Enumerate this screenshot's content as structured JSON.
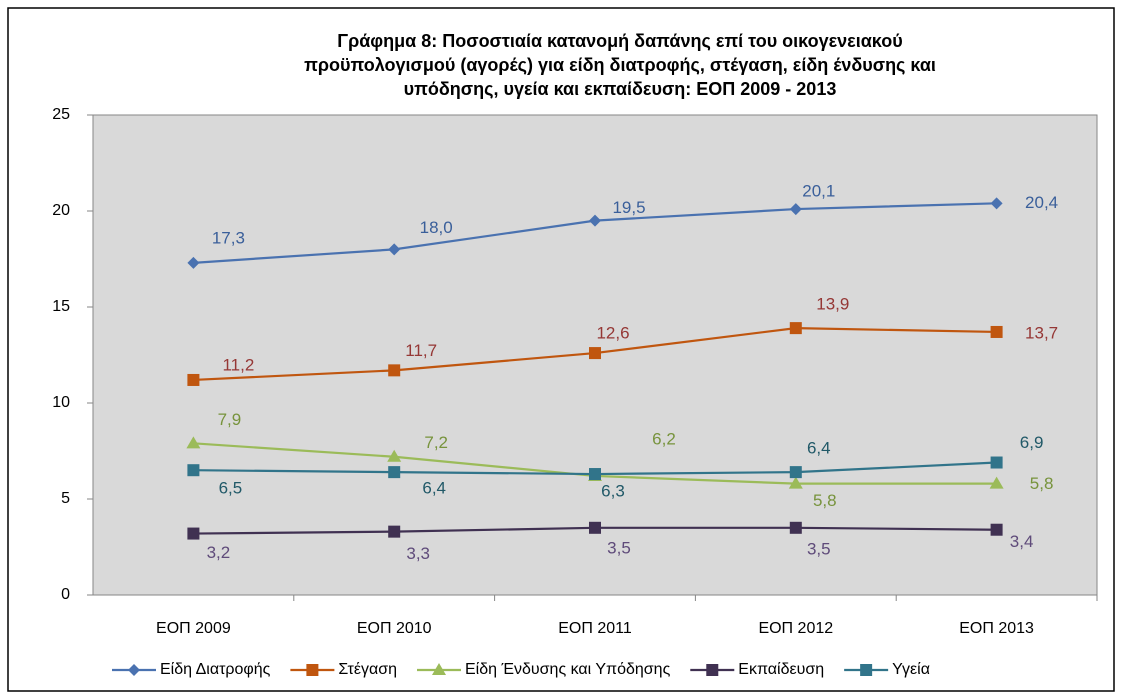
{
  "chart_data": {
    "type": "line",
    "title": [
      "Γράφημα 8: Ποσοστιαία κατανομή δαπάνης επί του οικογενειακού",
      "προϋπολογισμού (αγορές) για είδη διατροφής, στέγαση, είδη ένδυσης και",
      "υπόδησης, υγεία και εκπαίδευση:  ΕΟΠ 2009 - 2013"
    ],
    "categories": [
      "ΕΟΠ 2009",
      "ΕΟΠ 2010",
      "ΕΟΠ 2011",
      "ΕΟΠ 2012",
      "ΕΟΠ 2013"
    ],
    "ylim": [
      0,
      25
    ],
    "yticks": [
      0,
      5,
      10,
      15,
      20,
      25
    ],
    "grid": false,
    "legend": "bottom",
    "series": [
      {
        "name": "Είδη Διατροφής",
        "color": "#4a72b0",
        "label_color": "#3a5f9a",
        "marker": "diamond",
        "values": [
          17.3,
          18.0,
          19.5,
          20.1,
          20.4
        ],
        "value_labels": [
          "17,3",
          "18,0",
          "19,5",
          "20,1",
          "20,4"
        ]
      },
      {
        "name": "Στέγαση",
        "color": "#c0560f",
        "label_color": "#953735",
        "marker": "square",
        "values": [
          11.2,
          11.7,
          12.6,
          13.9,
          13.7
        ],
        "value_labels": [
          "11,2",
          "11,7",
          "12,6",
          "13,9",
          "13,7"
        ]
      },
      {
        "name": "Είδη Ένδυσης και Υπόδησης",
        "color": "#9bbb59",
        "label_color": "#77933c",
        "marker": "triangle",
        "values": [
          7.9,
          7.2,
          6.2,
          5.8,
          5.8
        ],
        "value_labels": [
          "7,9",
          "7,2",
          "6,2",
          "5,8",
          "5,8"
        ]
      },
      {
        "name": "Εκπαίδευση",
        "color": "#403152",
        "label_color": "#5f4b7a",
        "marker": "square",
        "values": [
          3.2,
          3.3,
          3.5,
          3.5,
          3.4
        ],
        "value_labels": [
          "3,2",
          "3,3",
          "3,5",
          "3,5",
          "3,4"
        ]
      },
      {
        "name": "Υγεία",
        "color": "#31748a",
        "label_color": "#215968",
        "marker": "square",
        "values": [
          6.5,
          6.4,
          6.3,
          6.4,
          6.9
        ],
        "value_labels": [
          "6,5",
          "6,4",
          "6,3",
          "6,4",
          "6,9"
        ]
      }
    ]
  }
}
